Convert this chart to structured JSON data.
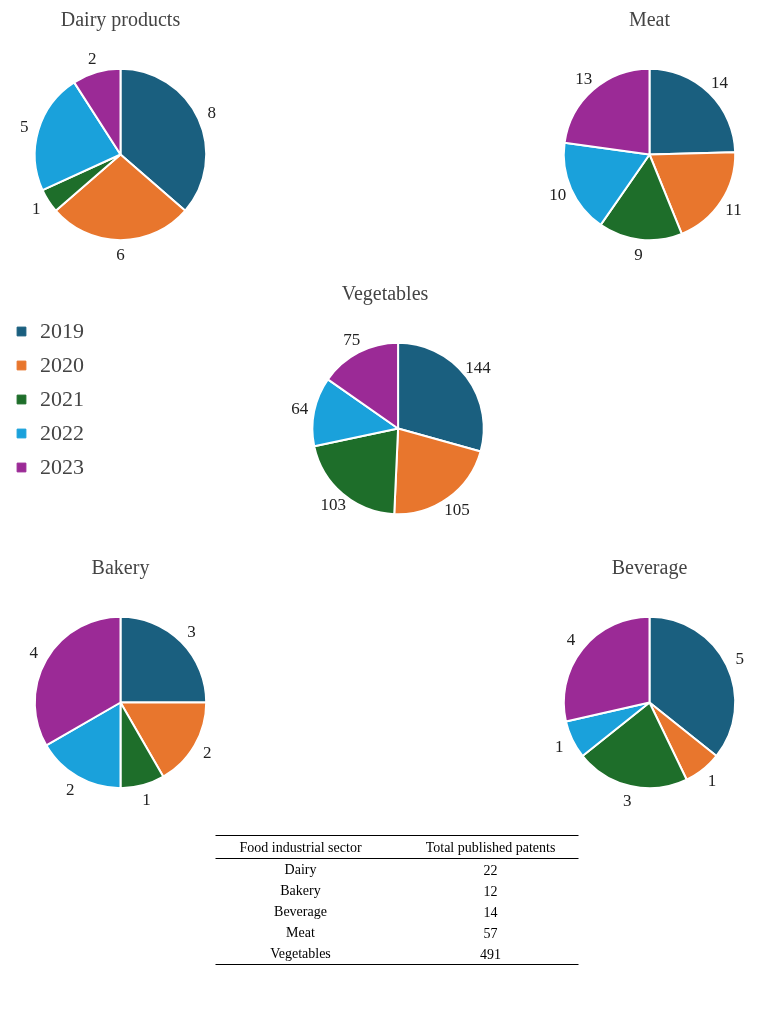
{
  "chart_data": [
    {
      "type": "pie",
      "title": "Dairy products",
      "categories": [
        "2019",
        "2020",
        "2021",
        "2022",
        "2023"
      ],
      "values": [
        8,
        6,
        1,
        5,
        2
      ],
      "colors": [
        "#1a5f7f",
        "#e8762d",
        "#1e6e2a",
        "#1aa1db",
        "#9b2a96"
      ],
      "data_labels": true,
      "legend": "left"
    },
    {
      "type": "pie",
      "title": "Meat",
      "categories": [
        null,
        null,
        null,
        null,
        null
      ],
      "values": [
        14,
        11,
        9,
        10,
        13
      ],
      "colors": [
        "#1a5f7f",
        "#e8762d",
        "#1e6e2a",
        "#1aa1db",
        "#9b2a96"
      ],
      "data_labels": true
    },
    {
      "type": "pie",
      "title": "Vegetables",
      "categories": [
        null,
        null,
        null,
        null,
        null
      ],
      "values": [
        144,
        105,
        103,
        64,
        75
      ],
      "colors": [
        "#1a5f7f",
        "#e8762d",
        "#1e6e2a",
        "#1aa1db",
        "#9b2a96"
      ],
      "data_labels": true
    },
    {
      "type": "pie",
      "title": "Bakery",
      "categories": [
        null,
        null,
        null,
        null,
        null
      ],
      "values": [
        3,
        2,
        1,
        2,
        4
      ],
      "colors": [
        "#1a5f7f",
        "#e8762d",
        "#1e6e2a",
        "#1aa1db",
        "#9b2a96"
      ],
      "data_labels": true
    },
    {
      "type": "pie",
      "title": "Beverage",
      "categories": [
        null,
        null,
        null,
        null,
        null
      ],
      "values": [
        5,
        1,
        3,
        1,
        4
      ],
      "colors": [
        "#1a5f7f",
        "#e8762d",
        "#1e6e2a",
        "#1aa1db",
        "#9b2a96"
      ],
      "data_labels": true
    },
    {
      "type": "other",
      "annotations": [
        "Food industrial sector",
        "Total published patents"
      ],
      "categories": [
        "Dairy",
        "Bakery",
        "Beverage",
        "Meat",
        "Vegetables"
      ],
      "values": [
        22,
        12,
        14,
        57,
        491
      ],
      "data_labels": true
    }
  ]
}
